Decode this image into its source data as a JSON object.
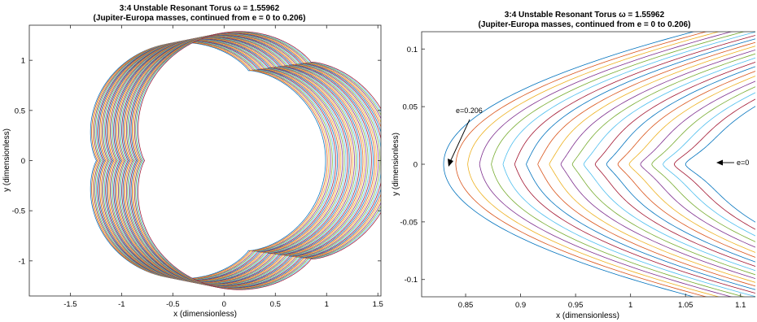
{
  "chart_data": [
    {
      "type": "line",
      "title": "3:4 Unstable Resonant Torus ω = 1.55962",
      "subtitle": "(Jupiter-Europa masses, continued from e = 0 to 0.206)",
      "xlabel": "x (dimensionless)",
      "ylabel": "y (dimensionless)",
      "xlim": [
        -1.9,
        1.53
      ],
      "ylim": [
        -1.35,
        1.35
      ],
      "xticks": [
        -1.5,
        -1,
        -0.5,
        0,
        0.5,
        1,
        1.5
      ],
      "xtick_labels": [
        "-1.5",
        "-1",
        "-0.5",
        "0",
        "0.5",
        "1",
        "1.5"
      ],
      "yticks": [
        -1,
        -0.5,
        0,
        0.5,
        1
      ],
      "ytick_labels": [
        "-1",
        "-0.5",
        "0",
        "0.5",
        "1"
      ],
      "grid": false,
      "num_curves": 42,
      "e_range": [
        0,
        0.206
      ],
      "colors": [
        "#0072bd",
        "#d95319",
        "#edb120",
        "#7e2f8e",
        "#77ac30",
        "#4dbeee",
        "#a2142f"
      ]
    },
    {
      "type": "line",
      "title": "3:4 Unstable Resonant Torus ω = 1.55962",
      "subtitle": "(Jupiter-Europa masses, continued from e = 0 to 0.206)",
      "xlabel": "x (dimensionless)",
      "ylabel": "y (dimensionless)",
      "xlim": [
        0.81,
        1.1135
      ],
      "ylim": [
        -0.115,
        0.115
      ],
      "xticks": [
        0.85,
        0.9,
        0.95,
        1,
        1.05,
        1.1
      ],
      "xtick_labels": [
        "0.85",
        "0.9",
        "0.95",
        "1",
        "1.05",
        "1.1"
      ],
      "yticks": [
        -0.1,
        -0.05,
        0,
        0.05,
        0.1
      ],
      "ytick_labels": [
        "-0.1",
        "-0.05",
        "0",
        "0.05",
        "0.1"
      ],
      "grid": false,
      "num_curves": 22,
      "annotations": [
        {
          "text": "e=0.206",
          "point": [
            0.83,
            0
          ]
        },
        {
          "text": "e=0",
          "point": [
            1.07,
            0
          ]
        }
      ],
      "colors": [
        "#0072bd",
        "#d95319",
        "#edb120",
        "#7e2f8e",
        "#77ac30",
        "#4dbeee",
        "#a2142f"
      ]
    }
  ]
}
